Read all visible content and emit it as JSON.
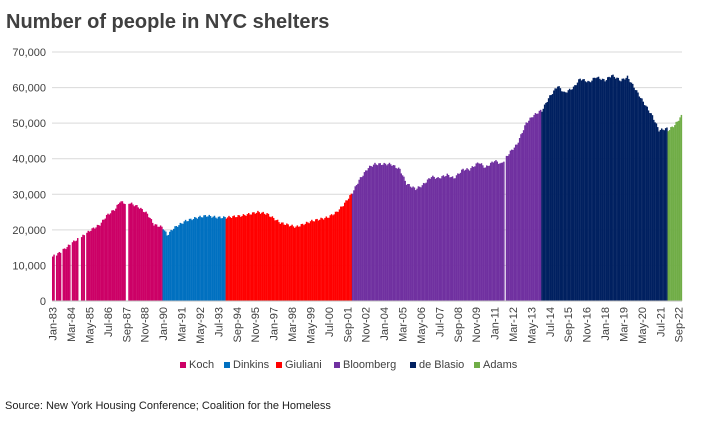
{
  "chart_data": {
    "type": "area",
    "title": "Number of people in NYC shelters",
    "xlabel": "",
    "ylabel": "",
    "ylim": [
      0,
      70000
    ],
    "yticks": [
      0,
      10000,
      20000,
      30000,
      40000,
      50000,
      60000,
      70000
    ],
    "ytick_labels": [
      "0",
      "10,000",
      "20,000",
      "30,000",
      "40,000",
      "50,000",
      "60,000",
      "70,000"
    ],
    "xrange": [
      "1983-01",
      "2022-11"
    ],
    "xtick_labels": [
      "Jan-83",
      "Mar-84",
      "May-85",
      "Jul-86",
      "Sep-87",
      "Nov-88",
      "Jan-90",
      "Mar-91",
      "May-92",
      "Jul-93",
      "Sep-94",
      "Nov-95",
      "Jan-97",
      "Mar-98",
      "May-99",
      "Jul-00",
      "Sep-01",
      "Nov-02",
      "Jan-04",
      "Mar-05",
      "May-06",
      "Jul-07",
      "Sep-08",
      "Nov-09",
      "Jan-11",
      "Mar-12",
      "May-13",
      "Jul-14",
      "Sep-15",
      "Nov-16",
      "Jan-18",
      "Mar-19",
      "May-20",
      "Jul-21",
      "Sep-22"
    ],
    "grid": true,
    "legend_position": "bottom",
    "series": [
      {
        "name": "Koch",
        "color": "#cc0066",
        "start": "1983-01",
        "end": "1989-12",
        "points": [
          [
            "1983-01",
            12500
          ],
          [
            "1983-06",
            13500
          ],
          [
            "1984-01",
            15500
          ],
          [
            "1984-06",
            17000
          ],
          [
            "1985-01",
            18500
          ],
          [
            "1985-06",
            20000
          ],
          [
            "1986-01",
            21500
          ],
          [
            "1986-06",
            24000
          ],
          [
            "1987-01",
            26000
          ],
          [
            "1987-04",
            28000
          ],
          [
            "1987-08",
            27500
          ],
          [
            "1987-10",
            27800
          ],
          [
            "1988-06",
            26500
          ],
          [
            "1989-01",
            24500
          ],
          [
            "1989-06",
            21500
          ],
          [
            "1989-12",
            20800
          ]
        ],
        "gaps": [
          [
            "1983-03",
            "1983-03"
          ],
          [
            "1983-08",
            "1983-08"
          ],
          [
            "1984-03",
            "1984-03"
          ],
          [
            "1984-09",
            "1984-10"
          ],
          [
            "1985-02",
            "1985-02"
          ],
          [
            "1987-09",
            "1987-10"
          ]
        ]
      },
      {
        "name": "Dinkins",
        "color": "#0070c0",
        "start": "1990-01",
        "end": "1993-12",
        "points": [
          [
            "1990-01",
            20500
          ],
          [
            "1990-04",
            18500
          ],
          [
            "1990-09",
            20500
          ],
          [
            "1991-06",
            22500
          ],
          [
            "1992-03",
            23500
          ],
          [
            "1992-10",
            24000
          ],
          [
            "1993-06",
            23500
          ],
          [
            "1993-12",
            23500
          ]
        ],
        "gaps": []
      },
      {
        "name": "Giuliani",
        "color": "#ff0000",
        "start": "1994-01",
        "end": "2001-12",
        "points": [
          [
            "1994-01",
            23500
          ],
          [
            "1995-01",
            24000
          ],
          [
            "1996-01",
            25000
          ],
          [
            "1996-08",
            24500
          ],
          [
            "1997-06",
            22000
          ],
          [
            "1998-06",
            20800
          ],
          [
            "1999-06",
            22500
          ],
          [
            "2000-06",
            23500
          ],
          [
            "2001-01",
            25000
          ],
          [
            "2001-06",
            27000
          ],
          [
            "2001-12",
            30000
          ]
        ],
        "gaps": []
      },
      {
        "name": "Bloomberg",
        "color": "#7030a0",
        "start": "2002-01",
        "end": "2013-12",
        "points": [
          [
            "2002-01",
            30500
          ],
          [
            "2002-06",
            34000
          ],
          [
            "2003-01",
            37500
          ],
          [
            "2003-06",
            38500
          ],
          [
            "2004-06",
            38500
          ],
          [
            "2005-01",
            37000
          ],
          [
            "2005-06",
            33000
          ],
          [
            "2006-01",
            31500
          ],
          [
            "2006-06",
            32500
          ],
          [
            "2007-01",
            35000
          ],
          [
            "2007-06",
            34500
          ],
          [
            "2008-01",
            35500
          ],
          [
            "2008-06",
            34500
          ],
          [
            "2009-01",
            37000
          ],
          [
            "2009-06",
            37000
          ],
          [
            "2010-01",
            39000
          ],
          [
            "2010-06",
            37500
          ],
          [
            "2011-01",
            39500
          ],
          [
            "2011-06",
            38500
          ],
          [
            "2012-01",
            42000
          ],
          [
            "2012-06",
            44000
          ],
          [
            "2013-01",
            50000
          ],
          [
            "2013-06",
            52000
          ],
          [
            "2013-12",
            53500
          ]
        ],
        "gaps": [
          [
            "2011-09",
            "2011-09"
          ]
        ]
      },
      {
        "name": "de Blasio",
        "color": "#002060",
        "start": "2014-01",
        "end": "2021-12",
        "points": [
          [
            "2014-01",
            53500
          ],
          [
            "2014-06",
            57000
          ],
          [
            "2015-01",
            60500
          ],
          [
            "2015-06",
            58500
          ],
          [
            "2016-01",
            60000
          ],
          [
            "2016-06",
            62500
          ],
          [
            "2017-01",
            61500
          ],
          [
            "2017-06",
            63000
          ],
          [
            "2018-01",
            62000
          ],
          [
            "2018-06",
            63500
          ],
          [
            "2019-01",
            62000
          ],
          [
            "2019-06",
            63000
          ],
          [
            "2020-01",
            59000
          ],
          [
            "2020-06",
            56000
          ],
          [
            "2021-01",
            52000
          ],
          [
            "2021-06",
            48000
          ],
          [
            "2021-12",
            48500
          ]
        ],
        "gaps": []
      },
      {
        "name": "Adams",
        "color": "#70ad47",
        "start": "2022-01",
        "end": "2022-11",
        "points": [
          [
            "2022-01",
            48000
          ],
          [
            "2022-06",
            49500
          ],
          [
            "2022-09",
            51000
          ],
          [
            "2022-11",
            52000
          ]
        ],
        "gaps": []
      }
    ]
  },
  "source_text": "Source: New York Housing Conference; Coalition for the Homeless"
}
